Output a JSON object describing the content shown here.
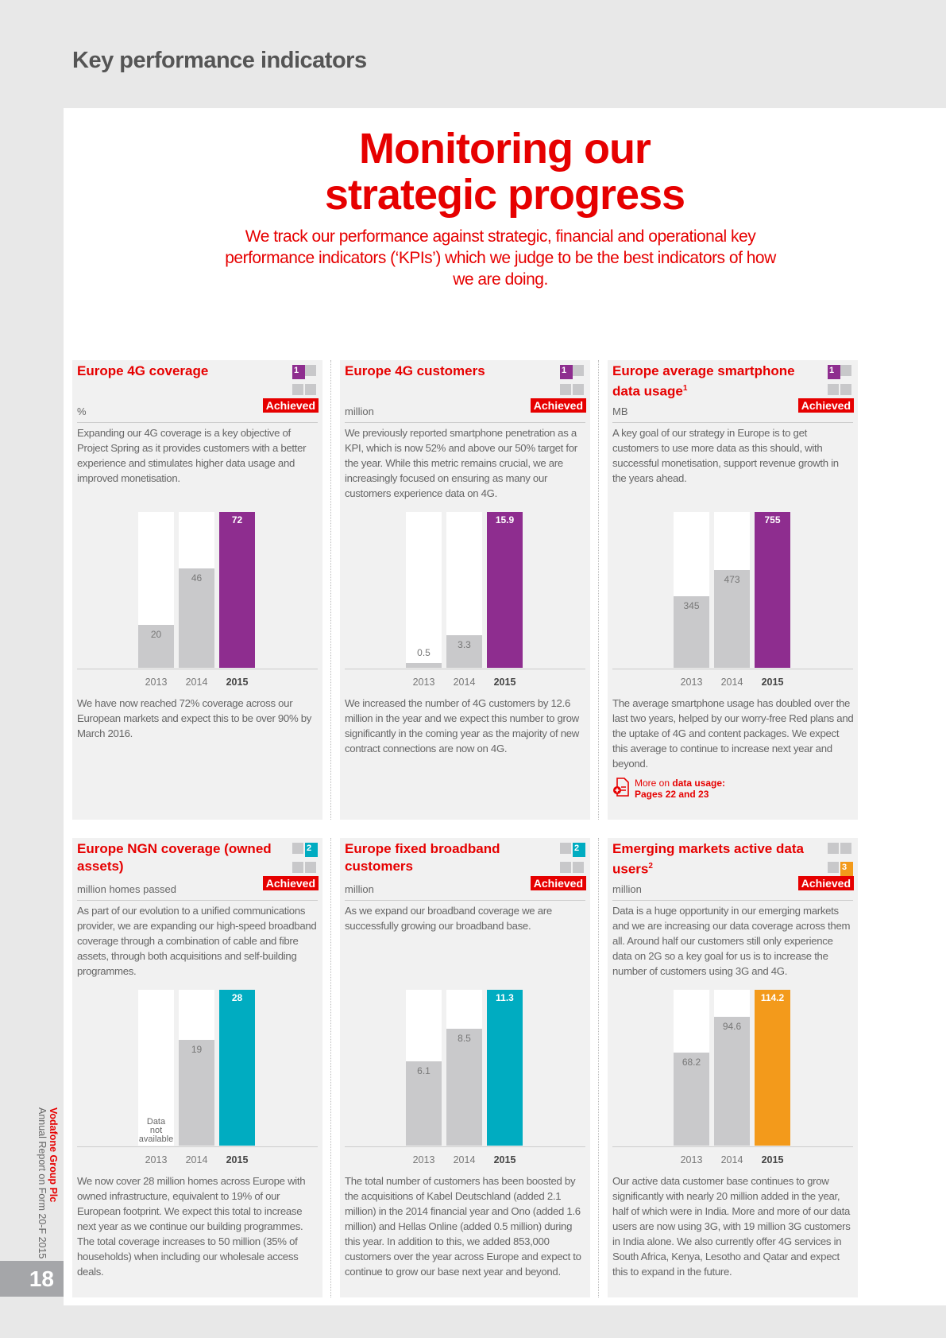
{
  "header": {
    "title": "Key performance indicators"
  },
  "main": {
    "title_line1": "Monitoring our",
    "title_line2": "strategic progress",
    "subtitle": "We track our performance against strategic, financial and operational key performance indicators (‘KPIs’) which we judge to be the best indicators of how we are doing."
  },
  "colors": {
    "red": "#e60000",
    "purple": "#8e2d8f",
    "teal": "#00acc1",
    "orange": "#f39a1b",
    "grey_bar": "#c9c9cb"
  },
  "cards": [
    {
      "title": "Europe 4G coverage",
      "sup": "",
      "unit": "%",
      "badge": "Achieved",
      "icon_number": "1",
      "icon_color": "#8e2d8f",
      "description": "Expanding our 4G coverage is a key objective of Project Spring as it provides customers with a better experience and stimulates higher data usage and improved monetisation.",
      "years": [
        "2013",
        "2014",
        "2015"
      ],
      "values": [
        20,
        46,
        72
      ],
      "labels": [
        "20",
        "46",
        "72"
      ],
      "footer": "We have now reached 72% coverage across our European markets and expect this to be over 90% by March 2016."
    },
    {
      "title": "Europe 4G customers",
      "sup": "",
      "unit": "million",
      "badge": "Achieved",
      "icon_number": "1",
      "icon_color": "#8e2d8f",
      "description": "We previously reported smartphone penetration as a KPI, which is now 52% and above our 50% target for the year. While this metric remains crucial, we are increasingly focused on ensuring as many our customers experience data on 4G.",
      "years": [
        "2013",
        "2014",
        "2015"
      ],
      "values": [
        0.5,
        3.3,
        15.9
      ],
      "labels": [
        "0.5",
        "3.3",
        "15.9"
      ],
      "footer": "We increased the number of 4G customers by 12.6 million in the year and we expect this number to grow significantly in the coming year as the majority of new contract connections are now on 4G."
    },
    {
      "title": "Europe average smartphone data usage",
      "sup": "1",
      "unit": "MB",
      "badge": "Achieved",
      "icon_number": "1",
      "icon_color": "#8e2d8f",
      "description": "A key goal of our strategy in Europe is to get customers to use more data as this should, with successful monetisation, support revenue growth in the years ahead.",
      "years": [
        "2013",
        "2014",
        "2015"
      ],
      "values": [
        345,
        473,
        755
      ],
      "labels": [
        "345",
        "473",
        "755"
      ],
      "footer": "The average smartphone usage has doubled over the last two years, helped by our worry-free Red plans and the uptake of 4G and content packages. We expect this average to continue to increase next year and beyond.",
      "more": {
        "prefix": "More on ",
        "topic": "data usage:",
        "pages": "Pages 22 and 23"
      }
    },
    {
      "title": "Europe NGN coverage (owned assets)",
      "sup": "",
      "unit": "million homes passed",
      "badge": "Achieved",
      "icon_number": "2",
      "icon_color": "#00acc1",
      "description": "As part of our evolution to a unified communications provider, we are expanding our high-speed broadband coverage through a combination of cable and fibre assets, through both acquisitions and self-building programmes.",
      "years": [
        "2013",
        "2014",
        "2015"
      ],
      "values": [
        null,
        19,
        28
      ],
      "labels": [
        "Data not available",
        "19",
        "28"
      ],
      "footer": "We now cover 28 million homes across Europe with owned infrastructure, equivalent to 19% of our European footprint. We expect this total to increase next year as we continue our building programmes. The total coverage increases to 50 million (35% of households) when including our wholesale access deals."
    },
    {
      "title": "Europe fixed broadband customers",
      "sup": "",
      "unit": "million",
      "badge": "Achieved",
      "icon_number": "2",
      "icon_color": "#00acc1",
      "description": "As we expand our broadband coverage we are successfully growing our broadband base.",
      "years": [
        "2013",
        "2014",
        "2015"
      ],
      "values": [
        6.1,
        8.5,
        11.3
      ],
      "labels": [
        "6.1",
        "8.5",
        "11.3"
      ],
      "footer": "The total number of customers has been boosted by the acquisitions of Kabel Deutschland (added 2.1 million) in the 2014 financial year and Ono (added 1.6 million) and Hellas Online (added 0.5 million) during this year. In addition to this, we added 853,000 customers over the year across Europe and expect to continue to grow our base next year and beyond."
    },
    {
      "title": "Emerging markets active data users",
      "sup": "2",
      "unit": "million",
      "badge": "Achieved",
      "icon_number": "3",
      "icon_color": "#f39a1b",
      "description": "Data is a huge opportunity in our emerging markets and we are increasing our data coverage across them all. Around half our customers still only experience data on 2G so a key goal for us is to increase the number of customers using 3G and 4G.",
      "years": [
        "2013",
        "2014",
        "2015"
      ],
      "values": [
        68.2,
        94.6,
        114.2
      ],
      "labels": [
        "68.2",
        "94.6",
        "114.2"
      ],
      "footer": "Our active data customer base continues to grow significantly with nearly 20 million added in the year, half of which were in India. More and more of our data users are now using 3G, with 19 million 3G customers in India alone. We also currently offer 4G services in South Africa, Kenya, Lesotho and Qatar and expect this to expand in the future."
    }
  ],
  "sidebar": {
    "company": "Vodafone Group Plc",
    "report": "Annual Report on Form 20-F 2015",
    "page_number": "18"
  }
}
